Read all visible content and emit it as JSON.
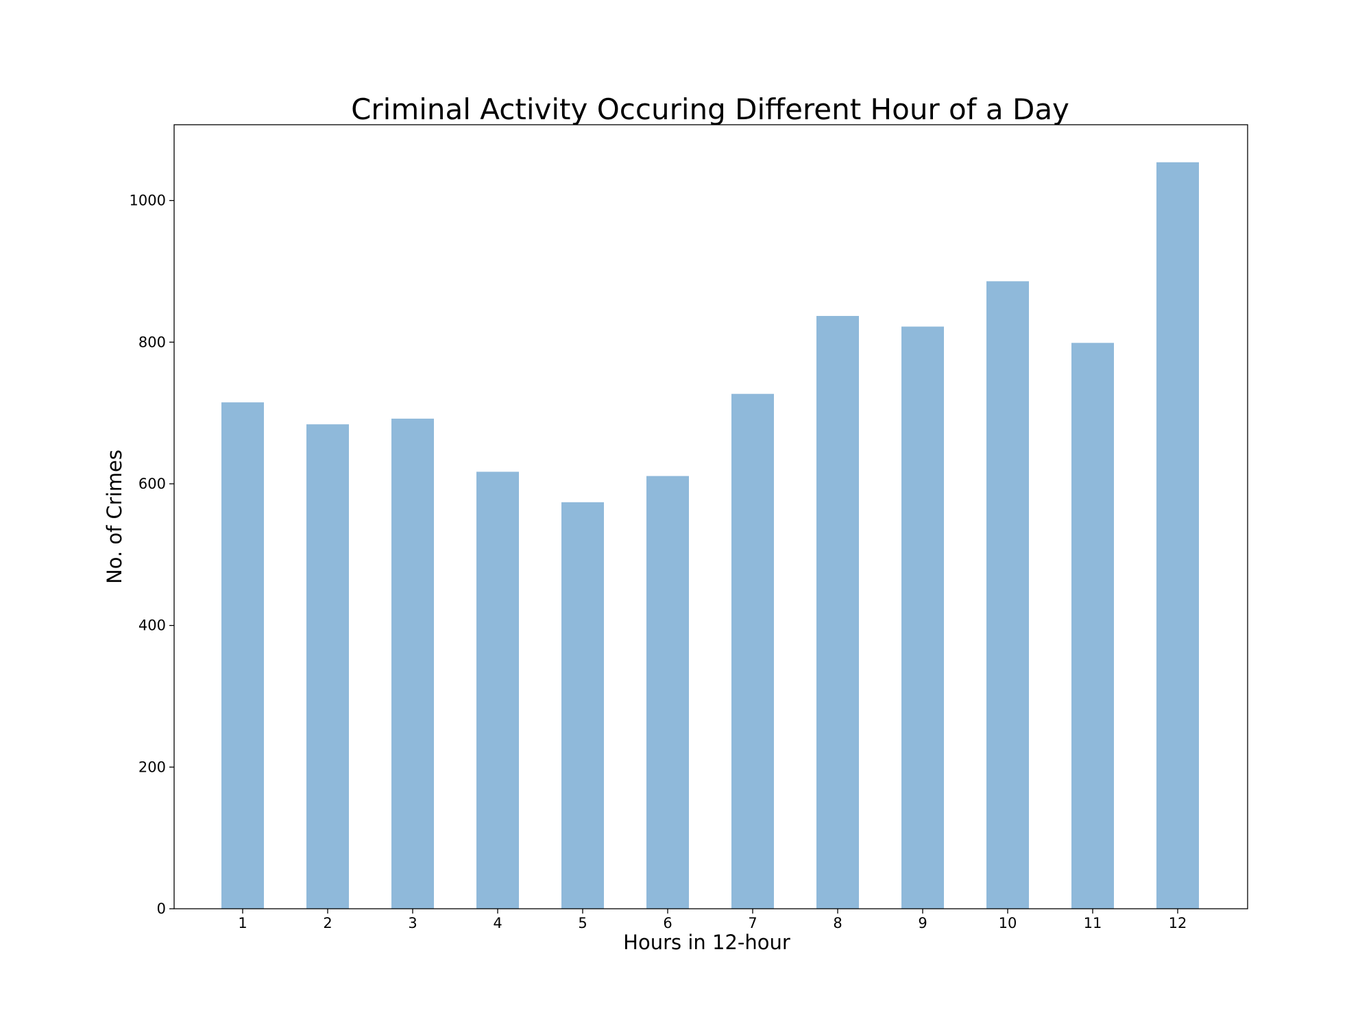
{
  "chart_data": {
    "type": "bar",
    "title": "Criminal Activity Occuring Different Hour of a Day",
    "xlabel": "Hours in 12-hour",
    "ylabel": "No. of Crimes",
    "categories": [
      "1",
      "2",
      "3",
      "4",
      "5",
      "6",
      "7",
      "8",
      "9",
      "10",
      "11",
      "12"
    ],
    "values": [
      715,
      684,
      692,
      617,
      574,
      611,
      727,
      837,
      822,
      886,
      799,
      1054
    ],
    "ylim": [
      0,
      1107
    ],
    "yticks": [
      0,
      200,
      400,
      600,
      800,
      1000
    ],
    "bar_color": "#8fb9da",
    "grid": false,
    "legend": "none"
  }
}
